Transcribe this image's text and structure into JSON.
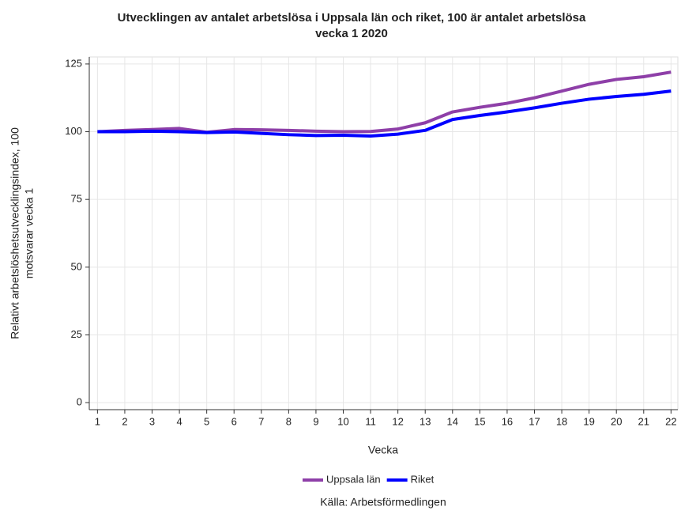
{
  "chart_data": {
    "type": "line",
    "title": [
      "Utvecklingen av antalet arbetslösa i Uppsala län och riket, 100 är antalet arbetslösa",
      "vecka 1 2020"
    ],
    "xlabel": "Vecka",
    "ylabel": [
      "Relativt arbetslöshetsutvecklingsindex, 100",
      "motsvarar vecka 1"
    ],
    "source": "Källa: Arbetsförmedlingen",
    "x": [
      1,
      2,
      3,
      4,
      5,
      6,
      7,
      8,
      9,
      10,
      11,
      12,
      13,
      14,
      15,
      16,
      17,
      18,
      19,
      20,
      21,
      22
    ],
    "series": [
      {
        "name": "Uppsala län",
        "color": "#8e3fa8",
        "values": [
          100,
          100.5,
          100.8,
          101.2,
          99.8,
          100.8,
          100.7,
          100.5,
          100.2,
          100,
          100.1,
          101,
          103.3,
          107.3,
          109,
          110.5,
          112.5,
          115,
          117.5,
          119.3,
          120.3,
          122
        ]
      },
      {
        "name": "Riket",
        "color": "#0000ff",
        "values": [
          100,
          100,
          100.2,
          100,
          99.7,
          99.9,
          99.4,
          98.9,
          98.6,
          98.7,
          98.4,
          99.1,
          100.5,
          104.5,
          106,
          107.3,
          108.8,
          110.5,
          112,
          113,
          113.8,
          115
        ]
      }
    ],
    "xlim": [
      0.7,
      22.25
    ],
    "ylim": [
      -2.6,
      127.6
    ],
    "xticks": [
      1,
      2,
      3,
      4,
      5,
      6,
      7,
      8,
      9,
      10,
      11,
      12,
      13,
      14,
      15,
      16,
      17,
      18,
      19,
      20,
      21,
      22
    ],
    "yticks": [
      0,
      25,
      50,
      75,
      100,
      125
    ],
    "grid": true,
    "legend": "bottom"
  }
}
